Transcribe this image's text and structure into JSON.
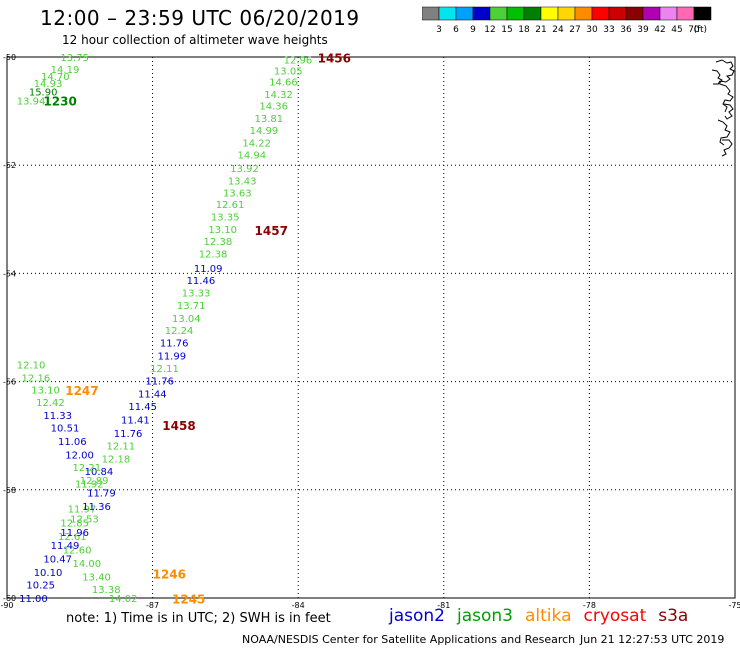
{
  "header": {
    "title": "12:00 – 23:59 UTC 06/20/2019",
    "subtitle": "12 hour collection of altimeter wave heights"
  },
  "legend_scale": {
    "unit": "(ft)",
    "bins": [
      {
        "label": "3",
        "color": "#808080"
      },
      {
        "label": "6",
        "color": "#00e5ee"
      },
      {
        "label": "9",
        "color": "#00a0ff"
      },
      {
        "label": "12",
        "color": "#0000cd"
      },
      {
        "label": "15",
        "color": "#4cd137"
      },
      {
        "label": "18",
        "color": "#00c000"
      },
      {
        "label": "21",
        "color": "#008000"
      },
      {
        "label": "24",
        "color": "#ffff00"
      },
      {
        "label": "27",
        "color": "#ffd700"
      },
      {
        "label": "30",
        "color": "#ff8c00"
      },
      {
        "label": "33",
        "color": "#ff0000"
      },
      {
        "label": "36",
        "color": "#cc0000"
      },
      {
        "label": "39",
        "color": "#8b0000"
      },
      {
        "label": "42",
        "color": "#b000b0"
      },
      {
        "label": "45",
        "color": "#ee82ee"
      },
      {
        "label": "70",
        "color": "#ff69b4"
      },
      {
        "label": "",
        "color": "#000000"
      }
    ]
  },
  "map": {
    "lon_range": [
      -90,
      -75
    ],
    "lat_range": [
      -60,
      -50
    ],
    "lon_ticks": [
      "-90",
      "-87",
      "-84",
      "-81",
      "-78",
      "-75"
    ],
    "lat_ticks": [
      "-50",
      "-52",
      "-54",
      "-56",
      "-58",
      "-60"
    ],
    "grid": true,
    "coastline_icon": "coastline-fragment"
  },
  "satellites": [
    {
      "name": "jason2",
      "color": "#0000cd"
    },
    {
      "name": "jason3",
      "color": "#00a000"
    },
    {
      "name": "altika",
      "color": "#ff8c00"
    },
    {
      "name": "cryosat",
      "color": "#ff0000"
    },
    {
      "name": "s3a",
      "color": "#8b0000"
    }
  ],
  "observation_colors": {
    "light": "#4cd137",
    "blue": "#0000cd",
    "dark": "#008000",
    "orange": "#ff8c00",
    "maroon": "#8b0000"
  },
  "observations": [
    {
      "v": "13.75",
      "lon": -88.9,
      "lat": -50.0,
      "c": "light"
    },
    {
      "v": "14.19",
      "lon": -89.1,
      "lat": -50.22,
      "c": "light"
    },
    {
      "v": "14.70",
      "lon": -89.3,
      "lat": -50.35,
      "c": "light"
    },
    {
      "v": "14.93",
      "lon": -89.45,
      "lat": -50.48,
      "c": "light"
    },
    {
      "v": "15.90",
      "lon": -89.55,
      "lat": -50.64,
      "c": "dark"
    },
    {
      "v": "13.94",
      "lon": -89.8,
      "lat": -50.8,
      "c": "light"
    },
    {
      "v": "12.96",
      "lon": -84.3,
      "lat": -50.05,
      "c": "light"
    },
    {
      "v": "13.05",
      "lon": -84.5,
      "lat": -50.25,
      "c": "light"
    },
    {
      "v": "14.66",
      "lon": -84.6,
      "lat": -50.45,
      "c": "light"
    },
    {
      "v": "14.32",
      "lon": -84.7,
      "lat": -50.68,
      "c": "light"
    },
    {
      "v": "14.36",
      "lon": -84.8,
      "lat": -50.9,
      "c": "light"
    },
    {
      "v": "13.81",
      "lon": -84.9,
      "lat": -51.13,
      "c": "light"
    },
    {
      "v": "14.99",
      "lon": -85.0,
      "lat": -51.35,
      "c": "light"
    },
    {
      "v": "14.22",
      "lon": -85.15,
      "lat": -51.58,
      "c": "light"
    },
    {
      "v": "14.94",
      "lon": -85.25,
      "lat": -51.8,
      "c": "light"
    },
    {
      "v": "13.92",
      "lon": -85.4,
      "lat": -52.05,
      "c": "light"
    },
    {
      "v": "13.43",
      "lon": -85.45,
      "lat": -52.28,
      "c": "light"
    },
    {
      "v": "13.63",
      "lon": -85.55,
      "lat": -52.5,
      "c": "light"
    },
    {
      "v": "12.61",
      "lon": -85.7,
      "lat": -52.72,
      "c": "light"
    },
    {
      "v": "13.35",
      "lon": -85.8,
      "lat": -52.95,
      "c": "light"
    },
    {
      "v": "13.10",
      "lon": -85.85,
      "lat": -53.18,
      "c": "light"
    },
    {
      "v": "12.38",
      "lon": -85.95,
      "lat": -53.4,
      "c": "light"
    },
    {
      "v": "12.38",
      "lon": -86.05,
      "lat": -53.63,
      "c": "light"
    },
    {
      "v": "11.09",
      "lon": -86.15,
      "lat": -53.9,
      "c": "blue"
    },
    {
      "v": "11.46",
      "lon": -86.3,
      "lat": -54.12,
      "c": "blue"
    },
    {
      "v": "13.33",
      "lon": -86.4,
      "lat": -54.35,
      "c": "light"
    },
    {
      "v": "13.71",
      "lon": -86.5,
      "lat": -54.58,
      "c": "light"
    },
    {
      "v": "13.04",
      "lon": -86.6,
      "lat": -54.82,
      "c": "light"
    },
    {
      "v": "12.24",
      "lon": -86.75,
      "lat": -55.05,
      "c": "light"
    },
    {
      "v": "11.76",
      "lon": -86.85,
      "lat": -55.28,
      "c": "blue"
    },
    {
      "v": "11.99",
      "lon": -86.9,
      "lat": -55.52,
      "c": "blue"
    },
    {
      "v": "12.11",
      "lon": -87.05,
      "lat": -55.75,
      "c": "light"
    },
    {
      "v": "11.76",
      "lon": -87.15,
      "lat": -55.98,
      "c": "blue"
    },
    {
      "v": "11.44",
      "lon": -87.3,
      "lat": -56.22,
      "c": "blue"
    },
    {
      "v": "11.45",
      "lon": -87.5,
      "lat": -56.45,
      "c": "blue"
    },
    {
      "v": "11.41",
      "lon": -87.65,
      "lat": -56.7,
      "c": "blue"
    },
    {
      "v": "11.76",
      "lon": -87.8,
      "lat": -56.95,
      "c": "blue"
    },
    {
      "v": "12.11",
      "lon": -87.95,
      "lat": -57.18,
      "c": "light"
    },
    {
      "v": "12.18",
      "lon": -88.05,
      "lat": -57.42,
      "c": "light"
    },
    {
      "v": "10.84",
      "lon": -88.4,
      "lat": -57.65,
      "c": "blue"
    },
    {
      "v": "11.92",
      "lon": -88.6,
      "lat": -57.88,
      "c": "light"
    },
    {
      "v": "11.97",
      "lon": -88.75,
      "lat": -58.35,
      "c": "light"
    },
    {
      "v": "12.85",
      "lon": -88.9,
      "lat": -58.6,
      "c": "light"
    },
    {
      "v": "12.61",
      "lon": -88.95,
      "lat": -58.85,
      "c": "light"
    },
    {
      "v": "12.60",
      "lon": -88.85,
      "lat": -59.1,
      "c": "light"
    },
    {
      "v": "14.00",
      "lon": -88.65,
      "lat": -59.35,
      "c": "light"
    },
    {
      "v": "13.40",
      "lon": -88.45,
      "lat": -59.6,
      "c": "light"
    },
    {
      "v": "13.38",
      "lon": -88.25,
      "lat": -59.83,
      "c": "light"
    },
    {
      "v": "14.02",
      "lon": -87.9,
      "lat": -60.0,
      "c": "light"
    },
    {
      "v": "12.10",
      "lon": -89.8,
      "lat": -55.68,
      "c": "light"
    },
    {
      "v": "12.16",
      "lon": -89.7,
      "lat": -55.92,
      "c": "light"
    },
    {
      "v": "13.10",
      "lon": -89.5,
      "lat": -56.15,
      "c": "light"
    },
    {
      "v": "12.42",
      "lon": -89.4,
      "lat": -56.38,
      "c": "light"
    },
    {
      "v": "11.33",
      "lon": -89.25,
      "lat": -56.62,
      "c": "blue"
    },
    {
      "v": "10.51",
      "lon": -89.1,
      "lat": -56.85,
      "c": "blue"
    },
    {
      "v": "11.06",
      "lon": -88.95,
      "lat": -57.1,
      "c": "blue"
    },
    {
      "v": "12.00",
      "lon": -88.8,
      "lat": -57.35,
      "c": "blue"
    },
    {
      "v": "12.21",
      "lon": -88.65,
      "lat": -57.58,
      "c": "light"
    },
    {
      "v": "12.89",
      "lon": -88.5,
      "lat": -57.82,
      "c": "light"
    },
    {
      "v": "11.79",
      "lon": -88.35,
      "lat": -58.05,
      "c": "blue"
    },
    {
      "v": "11.36",
      "lon": -88.45,
      "lat": -58.3,
      "c": "blue"
    },
    {
      "v": "12.53",
      "lon": -88.7,
      "lat": -58.53,
      "c": "light"
    },
    {
      "v": "11.96",
      "lon": -88.9,
      "lat": -58.78,
      "c": "blue"
    },
    {
      "v": "11.49",
      "lon": -89.1,
      "lat": -59.02,
      "c": "blue"
    },
    {
      "v": "10.47",
      "lon": -89.25,
      "lat": -59.27,
      "c": "blue"
    },
    {
      "v": "10.10",
      "lon": -89.45,
      "lat": -59.52,
      "c": "blue"
    },
    {
      "v": "10.25",
      "lon": -89.6,
      "lat": -59.75,
      "c": "blue"
    },
    {
      "v": "11.00",
      "lon": -89.75,
      "lat": -60.0,
      "c": "blue"
    }
  ],
  "time_labels": [
    {
      "t": "1230",
      "lon": -89.25,
      "lat": -50.82,
      "c": "dark"
    },
    {
      "t": "1456",
      "lon": -83.6,
      "lat": -50.03,
      "c": "maroon"
    },
    {
      "t": "1457",
      "lon": -84.9,
      "lat": -53.22,
      "c": "maroon"
    },
    {
      "t": "1247",
      "lon": -88.8,
      "lat": -56.17,
      "c": "orange"
    },
    {
      "t": "1458",
      "lon": -86.8,
      "lat": -56.82,
      "c": "maroon"
    },
    {
      "t": "1246",
      "lon": -87.0,
      "lat": -59.57,
      "c": "orange"
    },
    {
      "t": "1245",
      "lon": -86.6,
      "lat": -60.03,
      "c": "orange"
    }
  ],
  "footer": {
    "note": "note: 1) Time is in UTC; 2) SWH is in feet",
    "credit": "NOAA/NESDIS Center for Satellite Applications and Research",
    "timestamp": "Jun 21 12:27:53 UTC 2019"
  }
}
